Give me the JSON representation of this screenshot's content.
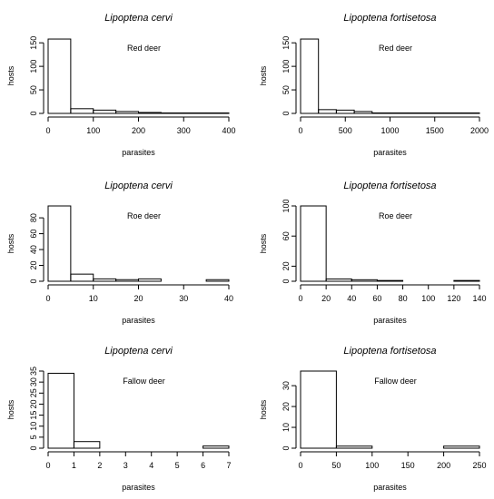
{
  "chart_data": [
    {
      "type": "bar",
      "title": "Lipoptena cervi",
      "annotation": "Red deer",
      "xlabel": "parasites",
      "ylabel": "hosts",
      "bins": [
        [
          0,
          50
        ],
        [
          50,
          100
        ],
        [
          100,
          150
        ],
        [
          150,
          200
        ],
        [
          200,
          250
        ],
        [
          250,
          300
        ],
        [
          300,
          350
        ],
        [
          350,
          400
        ]
      ],
      "values": [
        158,
        10,
        7,
        4,
        2,
        1,
        1,
        1
      ],
      "xlim": [
        0,
        400
      ],
      "ylim": [
        0,
        160
      ],
      "xticks": [
        0,
        100,
        200,
        300,
        400
      ],
      "yticks": [
        0,
        50,
        100,
        150
      ]
    },
    {
      "type": "bar",
      "title": "Lipoptena fortisetosa",
      "annotation": "Red deer",
      "xlabel": "parasites",
      "ylabel": "hosts",
      "bins": [
        [
          0,
          200
        ],
        [
          200,
          400
        ],
        [
          400,
          600
        ],
        [
          600,
          800
        ],
        [
          800,
          1000
        ],
        [
          1000,
          1200
        ],
        [
          1200,
          1400
        ],
        [
          1400,
          1600
        ],
        [
          1600,
          1800
        ],
        [
          1800,
          2000
        ]
      ],
      "values": [
        158,
        8,
        7,
        4,
        1,
        1,
        1,
        1,
        1,
        1
      ],
      "xlim": [
        0,
        2000
      ],
      "ylim": [
        0,
        160
      ],
      "xticks": [
        0,
        500,
        1000,
        1500,
        2000
      ],
      "yticks": [
        0,
        50,
        100,
        150
      ]
    },
    {
      "type": "bar",
      "title": "Lipoptena cervi",
      "annotation": "Roe deer",
      "xlabel": "parasites",
      "ylabel": "hosts",
      "bins": [
        [
          0,
          5
        ],
        [
          5,
          10
        ],
        [
          10,
          15
        ],
        [
          15,
          20
        ],
        [
          20,
          25
        ],
        [
          25,
          30
        ],
        [
          30,
          35
        ],
        [
          35,
          40
        ]
      ],
      "values": [
        95,
        9,
        3,
        2,
        3,
        0,
        0,
        2
      ],
      "xlim": [
        0,
        40
      ],
      "ylim": [
        0,
        95
      ],
      "xticks": [
        0,
        10,
        20,
        30,
        40
      ],
      "yticks": [
        0,
        20,
        40,
        60,
        80
      ]
    },
    {
      "type": "bar",
      "title": "Lipoptena fortisetosa",
      "annotation": "Roe deer",
      "xlabel": "parasites",
      "ylabel": "hosts",
      "bins": [
        [
          0,
          20
        ],
        [
          20,
          40
        ],
        [
          40,
          60
        ],
        [
          60,
          80
        ],
        [
          80,
          100
        ],
        [
          100,
          120
        ],
        [
          120,
          140
        ]
      ],
      "values": [
        100,
        3,
        2,
        1,
        0,
        0,
        1
      ],
      "xlim": [
        0,
        140
      ],
      "ylim": [
        0,
        100
      ],
      "xticks": [
        0,
        20,
        40,
        60,
        80,
        100,
        120,
        140
      ],
      "yticks": [
        0,
        20,
        60,
        100
      ]
    },
    {
      "type": "bar",
      "title": "Lipoptena cervi",
      "annotation": "Fallow deer",
      "xlabel": "parasites",
      "ylabel": "hosts",
      "bins": [
        [
          0,
          1
        ],
        [
          1,
          2
        ],
        [
          2,
          3
        ],
        [
          3,
          4
        ],
        [
          4,
          5
        ],
        [
          5,
          6
        ],
        [
          6,
          7
        ]
      ],
      "values": [
        34,
        3,
        0,
        0,
        0,
        0,
        1
      ],
      "xlim": [
        0,
        7
      ],
      "ylim": [
        0,
        35
      ],
      "xticks": [
        0,
        1,
        2,
        3,
        4,
        5,
        6,
        7
      ],
      "yticks": [
        0,
        5,
        10,
        15,
        20,
        25,
        30,
        35
      ]
    },
    {
      "type": "bar",
      "title": "Lipoptena fortisetosa",
      "annotation": "Fallow deer",
      "xlabel": "parasites",
      "ylabel": "hosts",
      "bins": [
        [
          0,
          50
        ],
        [
          50,
          100
        ],
        [
          100,
          150
        ],
        [
          150,
          200
        ],
        [
          200,
          250
        ]
      ],
      "values": [
        37,
        1,
        0,
        0,
        1
      ],
      "xlim": [
        0,
        250
      ],
      "ylim": [
        0,
        37
      ],
      "xticks": [
        0,
        50,
        100,
        150,
        200,
        250
      ],
      "yticks": [
        0,
        10,
        20,
        30
      ]
    }
  ]
}
